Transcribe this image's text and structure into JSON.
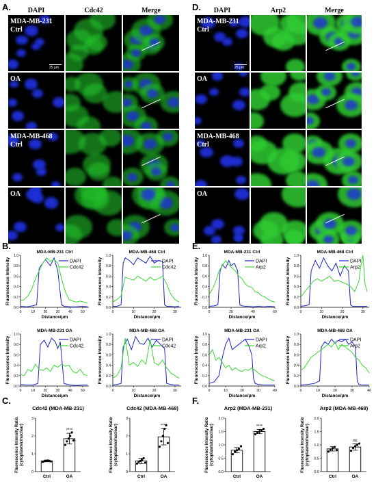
{
  "figure": {
    "panel_letters": {
      "A": "A.",
      "D": "D.",
      "B": "B.",
      "E": "E.",
      "C": "C.",
      "F": "F."
    },
    "panel_A": {
      "column_headers": [
        "DAPI",
        "Cdc42",
        "Merge"
      ],
      "row_labels": [
        "MDA-MB-231\nCtrl",
        "OA",
        "MDA-MB-468\nCtrl",
        "OA"
      ],
      "scale_bar": "25 μm",
      "marker_color": "#22c02a"
    },
    "panel_D": {
      "column_headers": [
        "DAPI",
        "Arp2",
        "Merge"
      ],
      "row_labels": [
        "MDA-MB-231\nCtrl",
        "OA",
        "MDA-MB-468\nCtrl",
        "OA"
      ],
      "scale_bar": "25 μm",
      "marker_color": "#2fcb32"
    },
    "nucleus_color": "#1f2fd9"
  },
  "chart_data": [
    {
      "id": "B1",
      "type": "line",
      "title": "MDA-MB-231 Ctrl",
      "xlabel": "Distance/μm",
      "ylabel": "Fluorescence Intensity",
      "xlim": [
        0,
        55
      ],
      "ylim": [
        0,
        1.0
      ],
      "xticks": [
        0,
        10,
        20,
        30,
        40,
        50
      ],
      "yticks": [
        0.0,
        0.2,
        0.4,
        0.6,
        0.8,
        1.0
      ],
      "series": [
        {
          "name": "DAPI",
          "color": "#1a23c8",
          "x": [
            0,
            5,
            10,
            13,
            15,
            18,
            20,
            24,
            27,
            30,
            33,
            35,
            40,
            45,
            50,
            54
          ],
          "y": [
            0.02,
            0.01,
            0.03,
            0.05,
            0.75,
            0.85,
            0.92,
            0.8,
            0.95,
            0.7,
            0.05,
            0.02,
            0.01,
            0.01,
            0.02,
            0.01
          ]
        },
        {
          "name": "Cdc42",
          "color": "#3bd832",
          "x": [
            0,
            3,
            6,
            9,
            12,
            15,
            18,
            21,
            24,
            27,
            30,
            33,
            36,
            39,
            42,
            45,
            48,
            51,
            54
          ],
          "y": [
            0.12,
            0.15,
            0.22,
            0.35,
            0.55,
            0.7,
            0.85,
            0.95,
            0.88,
            0.92,
            0.85,
            0.55,
            0.3,
            0.15,
            0.12,
            0.1,
            0.12,
            0.1,
            0.08
          ]
        }
      ]
    },
    {
      "id": "B2",
      "type": "line",
      "title": "MDA-MB-468 Ctrl",
      "xlabel": "Distance/μm",
      "ylabel": "Fluorescence Intensity",
      "xlim": [
        0,
        33
      ],
      "ylim": [
        0,
        1.0
      ],
      "xticks": [
        0,
        10,
        20,
        30
      ],
      "yticks": [
        0.0,
        0.2,
        0.4,
        0.6,
        0.8,
        1.0
      ],
      "series": [
        {
          "name": "DAPI",
          "color": "#1a23c8",
          "x": [
            0,
            2,
            4,
            5,
            6,
            8,
            10,
            12,
            14,
            16,
            18,
            20,
            22,
            24,
            25,
            26,
            28,
            30,
            32
          ],
          "y": [
            0.02,
            0.02,
            0.05,
            0.85,
            0.95,
            0.9,
            0.82,
            0.95,
            0.9,
            0.85,
            0.98,
            0.85,
            0.9,
            0.88,
            0.05,
            0.02,
            0.02,
            0.01,
            0.02
          ]
        },
        {
          "name": "Cdc42",
          "color": "#3bd832",
          "x": [
            0,
            2,
            4,
            6,
            8,
            10,
            12,
            14,
            16,
            18,
            20,
            22,
            24,
            26,
            28,
            30,
            32
          ],
          "y": [
            0.1,
            0.15,
            0.22,
            0.58,
            0.55,
            0.52,
            0.6,
            0.55,
            0.5,
            0.58,
            0.52,
            0.55,
            0.6,
            0.45,
            0.25,
            0.15,
            0.1
          ]
        }
      ]
    },
    {
      "id": "B3",
      "type": "line",
      "title": "MDA-MB-231 OA",
      "xlabel": "Distance/μm",
      "ylabel": "Fluorescence Intensity",
      "xlim": [
        0,
        55
      ],
      "ylim": [
        0,
        1.0
      ],
      "xticks": [
        0,
        10,
        20,
        30,
        40,
        50
      ],
      "yticks": [
        0.0,
        0.2,
        0.4,
        0.6,
        0.8,
        1.0
      ],
      "series": [
        {
          "name": "DAPI",
          "color": "#1a23c8",
          "x": [
            0,
            5,
            10,
            14,
            16,
            19,
            22,
            25,
            28,
            30,
            32,
            35,
            38,
            40,
            45,
            50,
            54
          ],
          "y": [
            0.03,
            0.02,
            0.02,
            0.05,
            0.8,
            0.88,
            0.75,
            0.92,
            0.85,
            0.72,
            0.85,
            0.05,
            0.03,
            0.02,
            0.01,
            0.02,
            0.02
          ]
        },
        {
          "name": "Cdc42",
          "color": "#3bd832",
          "x": [
            0,
            3,
            6,
            9,
            12,
            15,
            18,
            21,
            24,
            27,
            30,
            33,
            36,
            39,
            42,
            45,
            48,
            51,
            54
          ],
          "y": [
            0.22,
            0.2,
            0.32,
            0.28,
            0.42,
            0.32,
            0.3,
            0.35,
            0.28,
            0.4,
            0.36,
            0.42,
            0.38,
            0.4,
            0.28,
            0.25,
            0.32,
            0.22,
            0.2
          ]
        }
      ]
    },
    {
      "id": "B4",
      "type": "line",
      "title": "MDA-MB-468 OA",
      "xlabel": "Distance/μm",
      "ylabel": "Fluorescence Intensity",
      "xlim": [
        0,
        33
      ],
      "ylim": [
        0,
        1.0
      ],
      "xticks": [
        0,
        10,
        20,
        30
      ],
      "yticks": [
        0.0,
        0.2,
        0.4,
        0.6,
        0.8,
        1.0
      ],
      "series": [
        {
          "name": "DAPI",
          "color": "#1a23c8",
          "x": [
            0,
            2,
            4,
            5,
            7,
            9,
            11,
            13,
            15,
            17,
            19,
            21,
            23,
            25,
            26,
            28,
            30,
            32
          ],
          "y": [
            0.02,
            0.03,
            0.05,
            0.75,
            0.9,
            0.7,
            0.95,
            0.82,
            0.8,
            0.92,
            0.75,
            0.88,
            0.8,
            0.72,
            0.05,
            0.03,
            0.02,
            0.02
          ]
        },
        {
          "name": "Cdc42",
          "color": "#3bd832",
          "x": [
            0,
            2,
            4,
            6,
            8,
            10,
            12,
            14,
            16,
            18,
            20,
            22,
            24,
            26,
            28,
            30,
            32
          ],
          "y": [
            0.15,
            0.2,
            0.35,
            0.92,
            0.4,
            0.45,
            0.38,
            0.5,
            0.42,
            0.9,
            0.45,
            0.4,
            0.5,
            0.35,
            0.25,
            0.2,
            0.15
          ]
        }
      ]
    },
    {
      "id": "E1",
      "type": "line",
      "title": "MDA-MB-231 Ctrl",
      "xlabel": "Distance/μm",
      "ylabel": "Fluorescence Intensity",
      "xlim": [
        0,
        60
      ],
      "ylim": [
        0,
        1.0
      ],
      "xticks": [
        0,
        20,
        40,
        60
      ],
      "yticks": [
        0.0,
        0.2,
        0.4,
        0.6,
        0.8,
        1.0
      ],
      "series": [
        {
          "name": "DAPI",
          "color": "#1a23c8",
          "x": [
            0,
            5,
            8,
            10,
            12,
            15,
            18,
            20,
            23,
            26,
            28,
            30,
            33,
            35,
            40,
            45,
            50,
            55,
            60
          ],
          "y": [
            0.02,
            0.03,
            0.05,
            0.7,
            0.82,
            0.75,
            0.9,
            0.8,
            0.85,
            0.7,
            0.05,
            0.03,
            0.02,
            0.02,
            0.01,
            0.02,
            0.01,
            0.02,
            0.01
          ]
        },
        {
          "name": "Arp2",
          "color": "#3bd832",
          "x": [
            0,
            3,
            6,
            9,
            12,
            15,
            18,
            21,
            24,
            27,
            30,
            33,
            36,
            39,
            42,
            45,
            48,
            51,
            54,
            57,
            60
          ],
          "y": [
            0.25,
            0.35,
            0.5,
            0.7,
            0.8,
            0.9,
            0.82,
            0.75,
            0.7,
            0.6,
            0.55,
            0.45,
            0.4,
            0.38,
            0.3,
            0.28,
            0.22,
            0.2,
            0.15,
            0.12,
            0.1
          ]
        }
      ]
    },
    {
      "id": "E2",
      "type": "line",
      "title": "MDA-MB-468 Ctrl",
      "xlabel": "Distance/μm",
      "ylabel": "Fluorescence Intensity",
      "xlim": [
        0,
        33
      ],
      "ylim": [
        0,
        1.0
      ],
      "xticks": [
        0,
        10,
        20,
        30
      ],
      "yticks": [
        0.0,
        0.2,
        0.4,
        0.6,
        0.8,
        1.0
      ],
      "series": [
        {
          "name": "DAPI",
          "color": "#1a23c8",
          "x": [
            0,
            2,
            4,
            5,
            7,
            9,
            11,
            13,
            15,
            17,
            19,
            21,
            23,
            24,
            25,
            27,
            29,
            31,
            32
          ],
          "y": [
            0.02,
            0.03,
            0.05,
            0.7,
            0.9,
            0.75,
            0.95,
            0.8,
            0.7,
            0.85,
            0.6,
            0.8,
            0.7,
            0.05,
            0.02,
            0.02,
            0.02,
            0.02,
            0.02
          ]
        },
        {
          "name": "Arp2",
          "color": "#3bd832",
          "x": [
            0,
            2,
            4,
            6,
            8,
            10,
            12,
            14,
            16,
            18,
            20,
            22,
            24,
            26,
            28,
            29,
            30,
            31,
            32
          ],
          "y": [
            0.2,
            0.3,
            0.4,
            0.5,
            0.55,
            0.5,
            0.55,
            0.6,
            0.5,
            0.52,
            0.48,
            0.45,
            0.4,
            0.3,
            0.5,
            0.8,
            1.0,
            0.45,
            0.3
          ]
        }
      ]
    },
    {
      "id": "E3",
      "type": "line",
      "title": "MDA-MB-231 OA",
      "xlabel": "Distance/μm",
      "ylabel": "Fluorescence Intensity",
      "xlim": [
        0,
        40
      ],
      "ylim": [
        0,
        1.0
      ],
      "xticks": [
        0,
        10,
        20,
        30,
        40
      ],
      "yticks": [
        0.0,
        0.2,
        0.4,
        0.6,
        0.8,
        1.0
      ],
      "series": [
        {
          "name": "DAPI",
          "color": "#1a23c8",
          "x": [
            0,
            3,
            6,
            8,
            10,
            12,
            14,
            16,
            18,
            20,
            22,
            24,
            26,
            27,
            28,
            30,
            33,
            36,
            40
          ],
          "y": [
            0.05,
            0.08,
            0.2,
            0.55,
            0.8,
            0.92,
            0.7,
            0.75,
            0.8,
            0.85,
            0.9,
            0.78,
            0.6,
            0.15,
            0.05,
            0.03,
            0.02,
            0.02,
            0.02
          ]
        },
        {
          "name": "Arp2",
          "color": "#3bd832",
          "x": [
            0,
            2,
            4,
            6,
            8,
            10,
            12,
            14,
            16,
            18,
            20,
            22,
            24,
            26,
            28,
            30,
            32,
            34,
            36,
            38,
            40
          ],
          "y": [
            0.6,
            0.7,
            0.5,
            0.55,
            0.45,
            0.35,
            0.4,
            0.3,
            0.35,
            0.3,
            0.28,
            0.32,
            0.3,
            0.35,
            0.3,
            0.25,
            0.2,
            0.18,
            0.15,
            0.12,
            0.1
          ]
        }
      ]
    },
    {
      "id": "E4",
      "type": "line",
      "title": "MDA-MB-468 OA",
      "xlabel": "Distance/μm",
      "ylabel": "Fluorescence Intensity",
      "xlim": [
        0,
        40
      ],
      "ylim": [
        0,
        1.0
      ],
      "xticks": [
        0,
        10,
        20,
        30,
        40
      ],
      "yticks": [
        0.0,
        0.2,
        0.4,
        0.6,
        0.8,
        1.0
      ],
      "series": [
        {
          "name": "DAPI",
          "color": "#1a23c8",
          "x": [
            0,
            4,
            8,
            11,
            12,
            14,
            16,
            18,
            20,
            22,
            24,
            26,
            28,
            30,
            32,
            33,
            34,
            36,
            40
          ],
          "y": [
            0.02,
            0.03,
            0.05,
            0.1,
            0.75,
            0.85,
            0.8,
            0.9,
            0.82,
            0.88,
            0.85,
            0.9,
            0.8,
            0.85,
            0.75,
            0.1,
            0.03,
            0.02,
            0.02
          ]
        },
        {
          "name": "Arp2",
          "color": "#3bd832",
          "x": [
            0,
            2,
            4,
            6,
            8,
            10,
            12,
            14,
            16,
            18,
            20,
            22,
            24,
            26,
            28,
            30,
            32,
            34,
            36,
            38,
            40
          ],
          "y": [
            0.3,
            0.35,
            0.45,
            0.55,
            0.6,
            0.65,
            0.7,
            0.75,
            0.8,
            0.75,
            0.85,
            0.7,
            0.8,
            0.75,
            0.7,
            0.65,
            0.55,
            0.5,
            0.4,
            0.35,
            0.25
          ]
        }
      ]
    },
    {
      "id": "C1",
      "type": "bar",
      "title": "Cdc42 (MDA-MB-231)",
      "ylabel": "Fluorescence Intensity Ratio\n(cytoplasmic/nuclear)",
      "categories": [
        "Ctrl",
        "OA"
      ],
      "values": [
        0.6,
        1.85
      ],
      "errors": [
        0.05,
        0.3
      ],
      "ylim": [
        0,
        3
      ],
      "yticks": [
        0,
        1,
        2,
        3
      ],
      "significance": [
        "",
        "****"
      ],
      "points": [
        [
          0.55,
          0.58,
          0.6,
          0.62,
          0.6,
          0.57
        ],
        [
          1.5,
          1.7,
          1.85,
          2.0,
          2.2,
          1.75
        ]
      ]
    },
    {
      "id": "C2",
      "type": "bar",
      "title": "Cdc42 (MDA-MB-468)",
      "ylabel": "Fluorescence Intensity Ratio\n(cytoplasmic/nuclear)",
      "categories": [
        "Ctrl",
        "OA"
      ],
      "values": [
        0.6,
        1.95
      ],
      "errors": [
        0.15,
        0.45
      ],
      "ylim": [
        0,
        3
      ],
      "yticks": [
        0,
        1,
        2,
        3
      ],
      "significance": [
        "",
        "****"
      ],
      "points": [
        [
          0.45,
          0.55,
          0.6,
          0.65,
          0.75,
          0.5
        ],
        [
          1.4,
          1.7,
          2.0,
          2.4,
          2.6,
          1.6
        ]
      ]
    },
    {
      "id": "F1",
      "type": "bar",
      "title": "Arp2 (MDA-MB-231)",
      "ylabel": "Fluorescence Intensity Ratio\n(cytoplasmic/nuclear)",
      "categories": [
        "Ctrl",
        "OA"
      ],
      "values": [
        0.8,
        1.5
      ],
      "errors": [
        0.1,
        0.08
      ],
      "ylim": [
        0,
        2.0
      ],
      "yticks": [
        0.0,
        0.5,
        1.0,
        1.5,
        2.0
      ],
      "significance": [
        "",
        "****"
      ],
      "points": [
        [
          0.65,
          0.75,
          0.8,
          0.85,
          0.95
        ],
        [
          1.4,
          1.45,
          1.5,
          1.55,
          1.6
        ]
      ]
    },
    {
      "id": "F2",
      "type": "bar",
      "title": "Arp2 (MDA-MB-468)",
      "ylabel": "Fluorescence Intensity Ratio\n(cytoplasmic/nuclear)",
      "categories": [
        "Ctrl",
        "OA"
      ],
      "values": [
        0.85,
        0.92
      ],
      "errors": [
        0.08,
        0.12
      ],
      "ylim": [
        0,
        2.0
      ],
      "yticks": [
        0.0,
        0.5,
        1.0,
        1.5,
        2.0
      ],
      "significance": [
        "",
        "ns"
      ],
      "points": [
        [
          0.75,
          0.82,
          0.88,
          0.92,
          0.8
        ],
        [
          0.78,
          0.88,
          0.95,
          1.0,
          1.05
        ]
      ]
    }
  ]
}
